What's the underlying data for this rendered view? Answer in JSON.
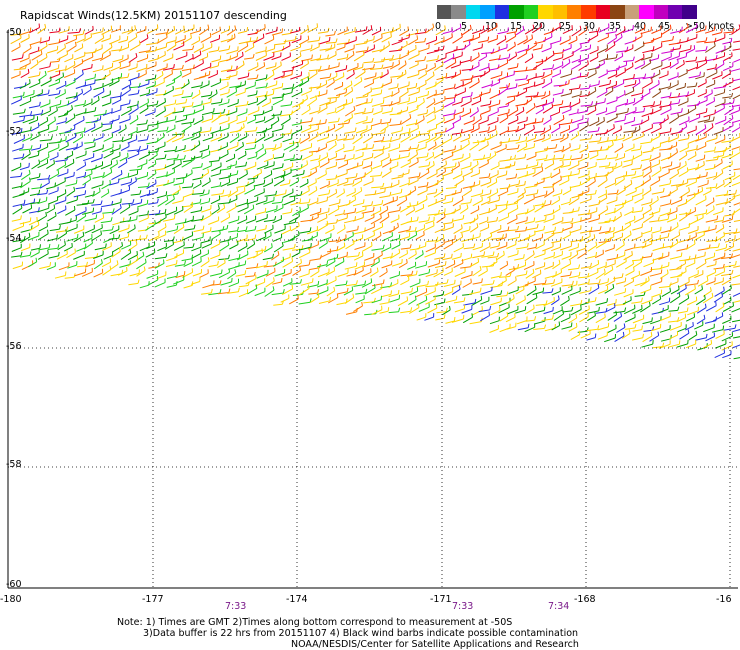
{
  "title": "Rapidscat Winds(12.5KM) 20151107 descending",
  "scale": {
    "colors": [
      "#555555",
      "#8a8a8a",
      "#00d8f0",
      "#00a0ff",
      "#2030e0",
      "#00a000",
      "#20d020",
      "#ffd700",
      "#ffbf00",
      "#ff7f00",
      "#ff3b00",
      "#e80020",
      "#8b4513",
      "#c8a07a",
      "#ff00ff",
      "#c000c0",
      "#7000b0",
      "#40008a"
    ],
    "labels": [
      "0",
      "5",
      "10",
      "15",
      "20",
      "25",
      "30",
      "35",
      "40",
      "45",
      ">50 knots"
    ]
  },
  "axes": {
    "lat_labels": [
      "-50",
      "-52",
      "-54",
      "-56",
      "-58",
      "-60"
    ],
    "lon_labels": [
      "-180",
      "-177",
      "-174",
      "-171",
      "-168",
      "-16"
    ]
  },
  "times": [
    "7:33",
    "7:33",
    "7:34"
  ],
  "notes": {
    "line1": "Note: 1) Times are GMT 2)Times along bottom correspond to measurement at -50S",
    "line2": "3)Data buffer is 22 hrs from 20151107 4) Black wind barbs indicate possible contamination",
    "line3": "NOAA/NESDIS/Center for Satellite Applications and Research"
  }
}
